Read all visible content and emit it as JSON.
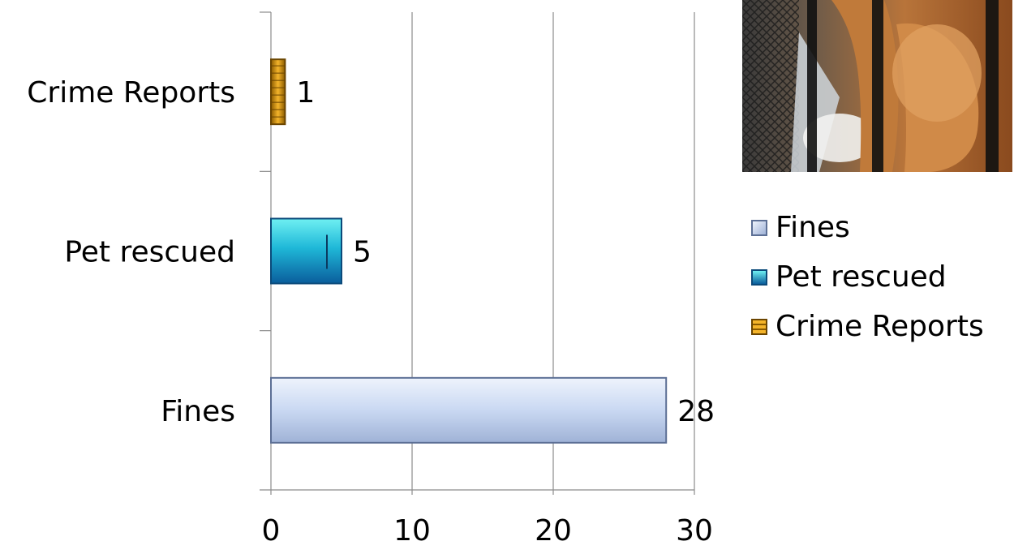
{
  "chart_data": {
    "type": "bar",
    "orientation": "horizontal",
    "categories": [
      "Crime Reports",
      "Pet rescued",
      "Fines"
    ],
    "series": [
      {
        "name": "Fines",
        "category": "Fines",
        "value": 28,
        "color": "#c6d6f2"
      },
      {
        "name": "Pet rescued",
        "category": "Pet rescued",
        "value": 5,
        "color": "#1fb8d8"
      },
      {
        "name": "Crime Reports",
        "category": "Crime Reports",
        "value": 1,
        "color": "#e0a21c"
      }
    ],
    "values": [
      1,
      5,
      28
    ],
    "data_labels": [
      "1",
      "5",
      "28"
    ],
    "xticks": [
      "0",
      "10",
      "20",
      "30"
    ],
    "xlim": [
      0,
      30
    ],
    "grid": "vertical",
    "legend_position": "right",
    "title": "",
    "xlabel": "",
    "ylabel": ""
  },
  "legend": {
    "items": [
      {
        "label": "Fines",
        "color": "#c6d6f2"
      },
      {
        "label": "Pet rescued",
        "color": "#1fb8d8"
      },
      {
        "label": "Crime Reports",
        "color": "#e0a21c"
      }
    ]
  },
  "photo": {
    "icon": "dog-in-crate-photo"
  }
}
